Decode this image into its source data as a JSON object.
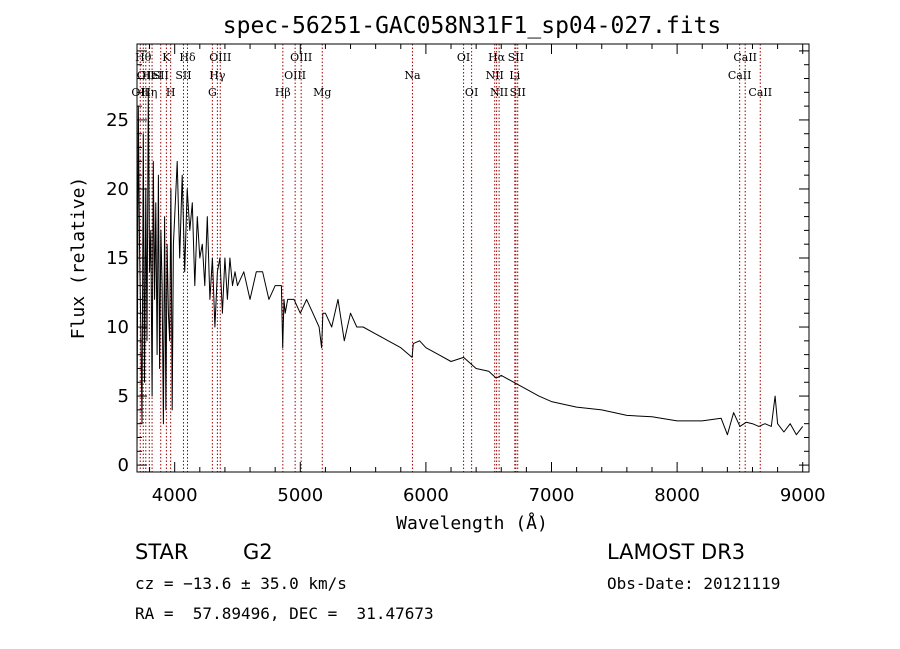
{
  "chart_data": {
    "type": "line",
    "title": "spec-56251-GAC058N31F1_sp04-027.fits",
    "xlabel": "Wavelength (Å)",
    "ylabel": "Flux (relative)",
    "xlim": [
      3700,
      9050
    ],
    "ylim": [
      -0.5,
      30.5
    ],
    "xticks": [
      4000,
      5000,
      6000,
      7000,
      8000,
      9000
    ],
    "yticks": [
      0,
      5,
      10,
      15,
      20,
      25
    ],
    "grid": false,
    "series": [
      {
        "name": "flux",
        "x": [
          3700,
          3710,
          3720,
          3730,
          3740,
          3750,
          3760,
          3770,
          3780,
          3790,
          3800,
          3810,
          3820,
          3830,
          3840,
          3850,
          3860,
          3870,
          3880,
          3890,
          3900,
          3910,
          3920,
          3930,
          3940,
          3950,
          3960,
          3970,
          3980,
          3990,
          4000,
          4020,
          4040,
          4060,
          4080,
          4100,
          4120,
          4140,
          4160,
          4180,
          4200,
          4220,
          4240,
          4260,
          4280,
          4300,
          4320,
          4340,
          4360,
          4380,
          4400,
          4420,
          4440,
          4460,
          4480,
          4500,
          4550,
          4600,
          4650,
          4700,
          4750,
          4800,
          4850,
          4860,
          4870,
          4880,
          4900,
          4950,
          5000,
          5050,
          5100,
          5150,
          5170,
          5180,
          5200,
          5250,
          5300,
          5350,
          5400,
          5450,
          5500,
          5600,
          5700,
          5800,
          5890,
          5900,
          5950,
          6000,
          6100,
          6200,
          6300,
          6400,
          6500,
          6560,
          6600,
          6700,
          6800,
          6900,
          7000,
          7200,
          7400,
          7600,
          7800,
          8000,
          8200,
          8350,
          8400,
          8450,
          8500,
          8550,
          8600,
          8650,
          8700,
          8750,
          8780,
          8800,
          8850,
          8900,
          8950,
          9000
        ],
        "y": [
          1,
          26,
          16,
          10,
          3,
          24,
          6,
          20,
          9,
          27,
          14,
          17,
          5,
          22,
          12,
          19,
          8,
          21,
          7,
          17,
          13,
          3,
          18,
          4,
          16,
          11,
          9,
          20,
          4,
          16,
          18,
          22,
          15,
          21,
          14,
          20,
          17,
          19,
          13,
          18,
          15,
          16,
          13,
          18,
          12,
          15,
          10,
          14,
          15,
          11,
          15,
          12,
          15,
          13,
          14,
          13,
          14,
          12,
          14,
          14,
          12,
          13,
          13,
          8.5,
          12,
          11,
          12,
          12,
          11,
          12,
          11,
          10,
          8.5,
          11,
          11,
          10,
          12,
          9,
          11,
          10,
          10,
          9.5,
          9,
          8.5,
          7.8,
          8.8,
          9,
          8.5,
          8,
          7.5,
          7.8,
          7,
          6.8,
          6.3,
          6.5,
          6,
          5.5,
          5,
          4.6,
          4.2,
          4,
          3.6,
          3.5,
          3.2,
          3.2,
          3.4,
          2.2,
          3.8,
          2.8,
          3.1,
          3,
          2.8,
          3,
          2.8,
          5,
          3,
          2.4,
          3,
          2.2,
          2.8
        ]
      }
    ],
    "lines": [
      {
        "wave": 3726,
        "label": "OII",
        "row": 3
      },
      {
        "wave": 3750,
        "label": "Hθ",
        "row": 1
      },
      {
        "wave": 3770,
        "label": "OII",
        "row": 2
      },
      {
        "wave": 3798,
        "label": "Hη",
        "row": 3
      },
      {
        "wave": 3820,
        "label": "HeI",
        "row": 2
      },
      {
        "wave": 3889,
        "label": "SII",
        "row": 2
      },
      {
        "wave": 3934,
        "label": "K",
        "row": 1
      },
      {
        "wave": 3968,
        "label": "H",
        "row": 3
      },
      {
        "wave": 4102,
        "label": "Hδ",
        "row": 1
      },
      {
        "wave": 4070,
        "label": "SII",
        "row": 2
      },
      {
        "wave": 4300,
        "label": "G",
        "row": 3
      },
      {
        "wave": 4340,
        "label": "Hγ",
        "row": 2
      },
      {
        "wave": 4363,
        "label": "OIII",
        "row": 1
      },
      {
        "wave": 4861,
        "label": "Hβ",
        "row": 3
      },
      {
        "wave": 4959,
        "label": "OIII",
        "row": 2
      },
      {
        "wave": 5007,
        "label": "OIII",
        "row": 1
      },
      {
        "wave": 5175,
        "label": "Mg",
        "row": 3
      },
      {
        "wave": 5893,
        "label": "Na",
        "row": 2
      },
      {
        "wave": 6300,
        "label": "OI",
        "row": 1
      },
      {
        "wave": 6364,
        "label": "OI",
        "row": 3
      },
      {
        "wave": 6548,
        "label": "NII",
        "row": 2
      },
      {
        "wave": 6563,
        "label": "Hα",
        "row": 1
      },
      {
        "wave": 6583,
        "label": "NII",
        "row": 3
      },
      {
        "wave": 6708,
        "label": "Li",
        "row": 2
      },
      {
        "wave": 6716,
        "label": "SII",
        "row": 1
      },
      {
        "wave": 6731,
        "label": "SII",
        "row": 3
      },
      {
        "wave": 8498,
        "label": "CaII",
        "row": 2
      },
      {
        "wave": 8542,
        "label": "CaII",
        "row": 1
      },
      {
        "wave": 8662,
        "label": "CaII",
        "row": 3
      }
    ]
  },
  "info": {
    "object_class": "STAR",
    "subclass": "G2",
    "survey": "LAMOST DR3",
    "redshift": "cz = −13.6 ± 35.0 km/s",
    "obs_date": "Obs-Date: 20121119",
    "coords": "RA =  57.89496, DEC =  31.47673"
  },
  "colors": {
    "line_marker": "#a00000",
    "spectrum": "#000000"
  }
}
